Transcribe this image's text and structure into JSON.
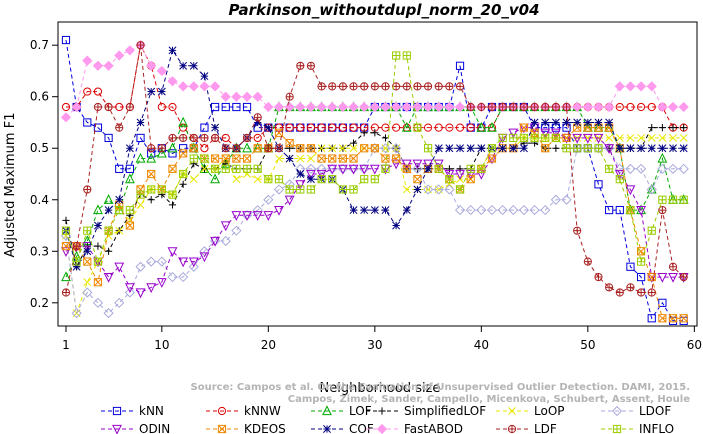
{
  "chart_data": {
    "type": "line",
    "title": "Parkinson_withoutdupl_norm_20_v04",
    "xlabel": "Neighborhood size",
    "ylabel": "Adjusted Maximum F1",
    "xlim": [
      1,
      60
    ],
    "ylim": [
      0.155,
      0.745
    ],
    "x_ticks": [
      1,
      10,
      20,
      30,
      40,
      50,
      60
    ],
    "y_ticks": [
      0.2,
      0.3,
      0.4,
      0.5,
      0.6,
      0.7
    ],
    "grid": false,
    "legend_position": "bottom",
    "watermark": [
      "Source: Campos et al. On the Evaluation of Unsupervised Outlier Detection. DAMI, 2015.",
      "Campos, Zimek, Sander, Campello, Micenkova, Schubert, Assent, Houle"
    ],
    "x": [
      1,
      2,
      3,
      4,
      5,
      6,
      7,
      8,
      9,
      10,
      11,
      12,
      13,
      14,
      15,
      16,
      17,
      18,
      19,
      20,
      21,
      22,
      23,
      24,
      25,
      26,
      27,
      28,
      29,
      30,
      31,
      32,
      33,
      34,
      35,
      36,
      37,
      38,
      39,
      40,
      41,
      42,
      43,
      44,
      45,
      46,
      47,
      48,
      49,
      50,
      51,
      52,
      53,
      54,
      55,
      56,
      57,
      58,
      59
    ],
    "series": [
      {
        "name": "kNN",
        "color": "#0000dd",
        "marker": "square",
        "values": [
          0.71,
          0.58,
          0.55,
          0.54,
          0.52,
          0.46,
          0.46,
          0.52,
          0.49,
          0.5,
          0.49,
          0.5,
          0.5,
          0.54,
          0.58,
          0.58,
          0.58,
          0.58,
          0.54,
          0.54,
          0.54,
          0.54,
          0.54,
          0.54,
          0.54,
          0.54,
          0.54,
          0.54,
          0.54,
          0.58,
          0.58,
          0.58,
          0.58,
          0.58,
          0.58,
          0.58,
          0.58,
          0.66,
          0.54,
          0.54,
          0.58,
          0.58,
          0.58,
          0.58,
          0.54,
          0.54,
          0.54,
          0.54,
          0.5,
          0.5,
          0.43,
          0.38,
          0.38,
          0.27,
          0.25,
          0.17,
          0.2,
          0.165,
          0.165
        ]
      },
      {
        "name": "kNNW",
        "color": "#dd0000",
        "marker": "circle",
        "values": [
          0.58,
          0.58,
          0.61,
          0.61,
          0.58,
          0.58,
          0.58,
          0.7,
          0.66,
          0.58,
          0.58,
          0.54,
          0.52,
          0.5,
          0.52,
          0.52,
          0.5,
          0.52,
          0.52,
          0.54,
          0.54,
          0.54,
          0.54,
          0.54,
          0.54,
          0.54,
          0.54,
          0.54,
          0.54,
          0.54,
          0.54,
          0.54,
          0.54,
          0.54,
          0.54,
          0.54,
          0.54,
          0.54,
          0.54,
          0.54,
          0.54,
          0.58,
          0.58,
          0.58,
          0.58,
          0.58,
          0.58,
          0.58,
          0.58,
          0.58,
          0.58,
          0.58,
          0.58,
          0.58,
          0.58,
          0.58,
          0.58,
          0.54,
          0.54
        ]
      },
      {
        "name": "LOF",
        "color": "#00aa00",
        "marker": "triangle-up",
        "values": [
          0.25,
          0.29,
          0.32,
          0.38,
          0.4,
          0.38,
          0.44,
          0.48,
          0.48,
          0.49,
          0.5,
          0.55,
          0.5,
          0.46,
          0.44,
          0.47,
          0.5,
          0.5,
          0.5,
          0.5,
          0.58,
          0.58,
          0.58,
          0.58,
          0.58,
          0.58,
          0.58,
          0.58,
          0.58,
          0.58,
          0.58,
          0.58,
          0.54,
          0.58,
          0.58,
          0.58,
          0.58,
          0.58,
          0.58,
          0.54,
          0.54,
          0.58,
          0.58,
          0.58,
          0.58,
          0.58,
          0.58,
          0.58,
          0.58,
          0.54,
          0.54,
          0.54,
          0.5,
          0.38,
          0.38,
          0.42,
          0.48,
          0.4,
          0.4
        ]
      },
      {
        "name": "SimplifiedLOF",
        "color": "#000000",
        "marker": "plus",
        "values": [
          0.36,
          0.27,
          0.31,
          0.31,
          0.3,
          0.34,
          0.37,
          0.41,
          0.4,
          0.41,
          0.39,
          0.43,
          0.47,
          0.46,
          0.46,
          0.47,
          0.46,
          0.46,
          0.46,
          0.5,
          0.5,
          0.5,
          0.5,
          0.5,
          0.5,
          0.5,
          0.5,
          0.51,
          0.53,
          0.53,
          0.52,
          0.5,
          0.46,
          0.46,
          0.46,
          0.46,
          0.46,
          0.46,
          0.46,
          0.5,
          0.5,
          0.5,
          0.5,
          0.51,
          0.51,
          0.5,
          0.5,
          0.5,
          0.5,
          0.5,
          0.5,
          0.5,
          0.5,
          0.5,
          0.5,
          0.54,
          0.54,
          0.54,
          0.54
        ]
      },
      {
        "name": "LoOP",
        "color": "#e8e800",
        "marker": "cross",
        "values": [
          0.33,
          0.18,
          0.24,
          0.28,
          0.33,
          0.34,
          0.36,
          0.39,
          0.42,
          0.42,
          0.41,
          0.45,
          0.44,
          0.46,
          0.46,
          0.48,
          0.44,
          0.45,
          0.44,
          0.44,
          0.48,
          0.48,
          0.48,
          0.48,
          0.5,
          0.5,
          0.5,
          0.5,
          0.5,
          0.5,
          0.5,
          0.5,
          0.42,
          0.42,
          0.42,
          0.42,
          0.43,
          0.44,
          0.44,
          0.46,
          0.5,
          0.5,
          0.5,
          0.52,
          0.52,
          0.52,
          0.52,
          0.52,
          0.52,
          0.52,
          0.52,
          0.52,
          0.52,
          0.52,
          0.52,
          0.52,
          0.52,
          0.52,
          0.52
        ]
      },
      {
        "name": "LDOF",
        "color": "#aaaadd",
        "marker": "diamond",
        "values": [
          0.33,
          0.18,
          0.22,
          0.2,
          0.18,
          0.2,
          0.22,
          0.27,
          0.28,
          0.28,
          0.25,
          0.25,
          0.27,
          0.3,
          0.32,
          0.32,
          0.34,
          0.37,
          0.38,
          0.4,
          0.42,
          0.43,
          0.46,
          0.46,
          0.46,
          0.46,
          0.46,
          0.46,
          0.46,
          0.5,
          0.5,
          0.5,
          0.46,
          0.46,
          0.42,
          0.42,
          0.42,
          0.38,
          0.38,
          0.38,
          0.38,
          0.38,
          0.38,
          0.38,
          0.38,
          0.38,
          0.4,
          0.4,
          0.5,
          0.5,
          0.5,
          0.5,
          0.46,
          0.46,
          0.46,
          0.42,
          0.46,
          0.46,
          0.46
        ]
      },
      {
        "name": "ODIN",
        "color": "#9900cc",
        "marker": "triangle-down",
        "values": [
          0.3,
          0.31,
          0.31,
          0.28,
          0.25,
          0.27,
          0.23,
          0.22,
          0.23,
          0.24,
          0.3,
          0.28,
          0.28,
          0.29,
          0.32,
          0.35,
          0.37,
          0.37,
          0.37,
          0.37,
          0.38,
          0.4,
          0.43,
          0.45,
          0.45,
          0.46,
          0.46,
          0.46,
          0.46,
          0.46,
          0.46,
          0.47,
          0.47,
          0.47,
          0.47,
          0.47,
          0.45,
          0.45,
          0.45,
          0.45,
          0.48,
          0.52,
          0.53,
          0.54,
          0.54,
          0.53,
          0.53,
          0.52,
          0.52,
          0.52,
          0.52,
          0.5,
          0.45,
          0.42,
          0.38,
          0.25,
          0.25,
          0.25,
          0.25
        ]
      },
      {
        "name": "KDEOS",
        "color": "#ee8800",
        "marker": "square-x",
        "values": [
          0.31,
          0.31,
          0.28,
          0.24,
          0.34,
          0.39,
          0.35,
          0.42,
          0.45,
          0.42,
          0.46,
          0.49,
          0.5,
          0.48,
          0.48,
          0.48,
          0.48,
          0.48,
          0.5,
          0.5,
          0.53,
          0.51,
          0.5,
          0.5,
          0.48,
          0.48,
          0.48,
          0.48,
          0.5,
          0.5,
          0.48,
          0.48,
          0.46,
          0.44,
          0.46,
          0.46,
          0.44,
          0.42,
          0.44,
          0.46,
          0.48,
          0.5,
          0.5,
          0.54,
          0.53,
          0.5,
          0.52,
          0.52,
          0.54,
          0.54,
          0.54,
          0.54,
          0.5,
          0.38,
          0.3,
          0.25,
          0.17,
          0.17,
          0.17
        ]
      },
      {
        "name": "COF",
        "color": "#000080",
        "marker": "asterisk",
        "values": [
          0.34,
          0.27,
          0.3,
          0.35,
          0.38,
          0.4,
          0.5,
          0.55,
          0.61,
          0.61,
          0.69,
          0.66,
          0.66,
          0.64,
          0.54,
          0.5,
          0.5,
          0.52,
          0.55,
          0.54,
          0.5,
          0.48,
          0.45,
          0.44,
          0.44,
          0.44,
          0.42,
          0.38,
          0.38,
          0.38,
          0.38,
          0.35,
          0.38,
          0.42,
          0.46,
          0.5,
          0.5,
          0.5,
          0.5,
          0.5,
          0.5,
          0.5,
          0.5,
          0.5,
          0.55,
          0.55,
          0.55,
          0.55,
          0.55,
          0.55,
          0.55,
          0.55,
          0.5,
          0.5,
          0.5,
          0.5,
          0.5,
          0.5,
          0.5
        ]
      },
      {
        "name": "FastABOD",
        "color": "#ff99ee",
        "marker": "diamond-filled",
        "values": [
          0.56,
          0.58,
          0.67,
          0.66,
          0.66,
          0.68,
          0.69,
          0.7,
          0.66,
          0.65,
          0.63,
          0.62,
          0.62,
          0.62,
          0.62,
          0.6,
          0.6,
          0.6,
          0.6,
          0.58,
          0.58,
          0.58,
          0.58,
          0.58,
          0.58,
          0.58,
          0.58,
          0.58,
          0.58,
          0.58,
          0.58,
          0.58,
          0.58,
          0.58,
          0.58,
          0.58,
          0.58,
          0.58,
          0.58,
          0.58,
          0.58,
          0.58,
          0.58,
          0.58,
          0.58,
          0.58,
          0.58,
          0.58,
          0.58,
          0.58,
          0.58,
          0.58,
          0.62,
          0.62,
          0.62,
          0.62,
          0.58,
          0.58,
          0.58
        ]
      },
      {
        "name": "LDF",
        "color": "#aa2222",
        "marker": "circle-plus",
        "values": [
          0.22,
          0.31,
          0.42,
          0.58,
          0.58,
          0.54,
          0.58,
          0.7,
          0.5,
          0.5,
          0.52,
          0.52,
          0.52,
          0.52,
          0.52,
          0.5,
          0.5,
          0.52,
          0.56,
          0.5,
          0.5,
          0.6,
          0.66,
          0.66,
          0.62,
          0.62,
          0.62,
          0.62,
          0.62,
          0.62,
          0.62,
          0.62,
          0.62,
          0.62,
          0.62,
          0.62,
          0.62,
          0.62,
          0.58,
          0.58,
          0.58,
          0.58,
          0.58,
          0.58,
          0.58,
          0.58,
          0.58,
          0.58,
          0.34,
          0.28,
          0.25,
          0.23,
          0.22,
          0.23,
          0.22,
          0.22,
          0.38,
          0.27,
          0.25
        ]
      },
      {
        "name": "INFLO",
        "color": "#99cc00",
        "marker": "square-plus",
        "values": [
          0.34,
          0.28,
          0.34,
          0.28,
          0.34,
          0.38,
          0.38,
          0.41,
          0.42,
          0.42,
          0.41,
          0.45,
          0.48,
          0.48,
          0.46,
          0.46,
          0.46,
          0.46,
          0.46,
          0.44,
          0.44,
          0.42,
          0.42,
          0.42,
          0.44,
          0.44,
          0.42,
          0.42,
          0.44,
          0.44,
          0.46,
          0.68,
          0.68,
          0.54,
          0.5,
          0.46,
          0.44,
          0.42,
          0.46,
          0.46,
          0.5,
          0.52,
          0.52,
          0.52,
          0.52,
          0.52,
          0.52,
          0.5,
          0.5,
          0.5,
          0.5,
          0.46,
          0.44,
          0.38,
          0.28,
          0.34,
          0.4,
          0.4,
          0.4
        ]
      }
    ]
  }
}
